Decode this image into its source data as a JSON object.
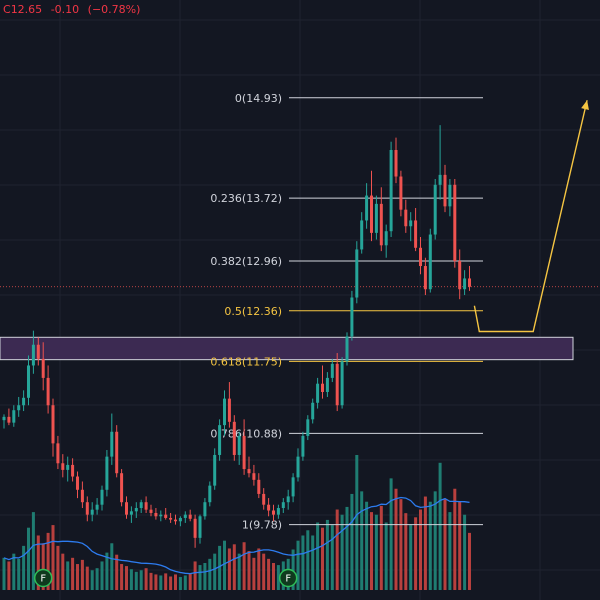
{
  "header": {
    "prefix": "C",
    "close": "12.65",
    "change": "-0.10",
    "change_pct": "(−0.78%)"
  },
  "colors": {
    "background": "#131722",
    "grid": "#1f2330",
    "up": "#26a69a",
    "down": "#ef5350",
    "vol_up": "#1f7d72",
    "vol_down": "#b8403e",
    "fib": "#d1d4dc",
    "fib_highlight": "#f5c542",
    "zone_fill": "#3c2a52",
    "zone_border": "#d1d4dc",
    "projection": "#f5c542",
    "vol_ma": "#2d7cf0",
    "price_line": "#ef5350",
    "dividend_marker": "#2ebd58"
  },
  "chart_data": {
    "type": "candlestick",
    "price_range": [
      8.87,
      16.11
    ],
    "current_price": 12.65,
    "fibonacci": [
      {
        "label": "0(14.93)",
        "value": 14.93,
        "highlight": false
      },
      {
        "label": "0.236(13.72)",
        "value": 13.72,
        "highlight": false
      },
      {
        "label": "0.382(12.96)",
        "value": 12.96,
        "highlight": false
      },
      {
        "label": "0.5(12.36)",
        "value": 12.36,
        "highlight": true
      },
      {
        "label": "0.618(11.75)",
        "value": 11.75,
        "highlight": true
      },
      {
        "label": "0.786(10.88)",
        "value": 10.88,
        "highlight": false
      },
      {
        "label": "1(9.78)",
        "value": 9.78,
        "highlight": false
      }
    ],
    "zone": {
      "low": 11.77,
      "high": 12.04
    },
    "projection": [
      {
        "bar": 96,
        "price": 12.42
      },
      {
        "bar": 97,
        "price": 12.11
      },
      {
        "bar": 108,
        "price": 12.11
      },
      {
        "bar": 119,
        "price": 14.9
      }
    ],
    "markers": [
      {
        "label": "F",
        "bar": 8
      },
      {
        "label": "F",
        "bar": 58
      }
    ],
    "candles": [
      [
        11.04,
        11.11,
        10.94,
        11.08
      ],
      [
        11.08,
        11.18,
        10.98,
        11.01
      ],
      [
        11.01,
        11.22,
        10.96,
        11.16
      ],
      [
        11.16,
        11.32,
        11.08,
        11.22
      ],
      [
        11.22,
        11.4,
        11.15,
        11.31
      ],
      [
        11.31,
        11.82,
        11.22,
        11.7
      ],
      [
        11.7,
        12.12,
        11.6,
        11.95
      ],
      [
        11.95,
        12.04,
        11.7,
        11.78
      ],
      [
        11.78,
        11.98,
        11.4,
        11.55
      ],
      [
        11.55,
        11.7,
        11.12,
        11.22
      ],
      [
        11.22,
        11.3,
        10.6,
        10.76
      ],
      [
        10.76,
        10.85,
        10.45,
        10.52
      ],
      [
        10.52,
        10.63,
        10.35,
        10.44
      ],
      [
        10.44,
        10.6,
        10.3,
        10.5
      ],
      [
        10.5,
        10.58,
        10.3,
        10.36
      ],
      [
        10.36,
        10.42,
        10.1,
        10.2
      ],
      [
        10.2,
        10.3,
        9.98,
        10.05
      ],
      [
        10.05,
        10.12,
        9.82,
        9.9
      ],
      [
        9.9,
        10.05,
        9.82,
        9.96
      ],
      [
        9.96,
        10.1,
        9.9,
        10.02
      ],
      [
        10.02,
        10.25,
        9.95,
        10.2
      ],
      [
        10.2,
        10.68,
        10.12,
        10.6
      ],
      [
        10.6,
        11.12,
        10.5,
        10.9
      ],
      [
        10.9,
        10.98,
        10.35,
        10.4
      ],
      [
        10.4,
        10.45,
        10.0,
        10.05
      ],
      [
        10.05,
        10.12,
        9.85,
        9.9
      ],
      [
        9.9,
        10.0,
        9.8,
        9.94
      ],
      [
        9.94,
        10.05,
        9.86,
        9.98
      ],
      [
        9.98,
        10.08,
        9.92,
        10.05
      ],
      [
        10.05,
        10.12,
        9.92,
        9.96
      ],
      [
        9.96,
        10.02,
        9.88,
        9.92
      ],
      [
        9.92,
        9.98,
        9.84,
        9.88
      ],
      [
        9.88,
        9.95,
        9.82,
        9.9
      ],
      [
        9.9,
        9.98,
        9.84,
        9.86
      ],
      [
        9.86,
        9.92,
        9.8,
        9.84
      ],
      [
        9.84,
        9.9,
        9.78,
        9.82
      ],
      [
        9.82,
        9.88,
        9.76,
        9.86
      ],
      [
        9.86,
        9.94,
        9.8,
        9.9
      ],
      [
        9.9,
        9.96,
        9.82,
        9.85
      ],
      [
        9.85,
        9.9,
        9.5,
        9.62
      ],
      [
        9.62,
        9.9,
        9.55,
        9.88
      ],
      [
        9.88,
        10.1,
        9.84,
        10.05
      ],
      [
        10.05,
        10.3,
        10.0,
        10.25
      ],
      [
        10.25,
        10.7,
        10.2,
        10.62
      ],
      [
        10.62,
        11.05,
        10.55,
        10.98
      ],
      [
        10.98,
        11.4,
        10.85,
        11.3
      ],
      [
        11.3,
        11.5,
        10.95,
        11.02
      ],
      [
        11.02,
        11.1,
        10.55,
        10.62
      ],
      [
        10.62,
        10.9,
        10.5,
        10.85
      ],
      [
        10.85,
        11.05,
        10.38,
        10.45
      ],
      [
        10.45,
        10.6,
        10.35,
        10.4
      ],
      [
        10.4,
        10.5,
        10.25,
        10.32
      ],
      [
        10.32,
        10.4,
        10.1,
        10.15
      ],
      [
        10.15,
        10.22,
        9.96,
        10.02
      ],
      [
        10.02,
        10.1,
        9.88,
        9.95
      ],
      [
        9.95,
        10.02,
        9.82,
        9.9
      ],
      [
        9.9,
        10.02,
        9.85,
        9.98
      ],
      [
        9.98,
        10.1,
        9.92,
        10.05
      ],
      [
        10.05,
        10.2,
        9.96,
        10.12
      ],
      [
        10.12,
        10.4,
        10.05,
        10.35
      ],
      [
        10.35,
        10.7,
        10.3,
        10.6
      ],
      [
        10.6,
        10.9,
        10.55,
        10.85
      ],
      [
        10.85,
        11.1,
        10.8,
        11.05
      ],
      [
        11.05,
        11.3,
        11.0,
        11.25
      ],
      [
        11.25,
        11.55,
        11.18,
        11.48
      ],
      [
        11.48,
        11.7,
        11.3,
        11.38
      ],
      [
        11.38,
        11.62,
        11.32,
        11.55
      ],
      [
        11.55,
        11.78,
        11.5,
        11.72
      ],
      [
        11.72,
        11.85,
        11.15,
        11.22
      ],
      [
        11.22,
        11.8,
        11.18,
        11.75
      ],
      [
        11.75,
        12.1,
        11.7,
        12.05
      ],
      [
        12.05,
        12.6,
        12.0,
        12.52
      ],
      [
        12.52,
        13.2,
        12.45,
        13.1
      ],
      [
        13.1,
        13.55,
        13.05,
        13.45
      ],
      [
        13.45,
        13.9,
        13.35,
        13.75
      ],
      [
        13.75,
        14.05,
        13.2,
        13.3
      ],
      [
        13.3,
        13.75,
        13.22,
        13.65
      ],
      [
        13.65,
        13.85,
        13.08,
        13.15
      ],
      [
        13.15,
        13.4,
        13.0,
        13.32
      ],
      [
        13.32,
        14.4,
        13.25,
        14.3
      ],
      [
        14.3,
        14.45,
        13.9,
        13.98
      ],
      [
        13.98,
        14.05,
        13.5,
        13.58
      ],
      [
        13.58,
        13.7,
        13.3,
        13.38
      ],
      [
        13.38,
        13.55,
        13.2,
        13.45
      ],
      [
        13.45,
        13.6,
        13.08,
        13.12
      ],
      [
        13.12,
        13.25,
        12.8,
        12.9
      ],
      [
        12.9,
        13.0,
        12.55,
        12.62
      ],
      [
        12.62,
        13.35,
        12.58,
        13.28
      ],
      [
        13.28,
        13.95,
        13.22,
        13.88
      ],
      [
        13.88,
        14.6,
        13.7,
        14.0
      ],
      [
        14.0,
        14.12,
        13.55,
        13.62
      ],
      [
        13.62,
        13.95,
        13.5,
        13.88
      ],
      [
        13.88,
        13.95,
        12.88,
        12.96
      ],
      [
        12.96,
        13.1,
        12.5,
        12.62
      ],
      [
        12.62,
        12.85,
        12.55,
        12.75
      ],
      [
        12.75,
        12.9,
        12.6,
        12.65
      ]
    ],
    "volume": [
      [
        0.62,
        1
      ],
      [
        0.55,
        0
      ],
      [
        0.7,
        1
      ],
      [
        0.6,
        1
      ],
      [
        0.85,
        1
      ],
      [
        1.2,
        1
      ],
      [
        1.5,
        1
      ],
      [
        1.05,
        0
      ],
      [
        0.9,
        0
      ],
      [
        1.1,
        0
      ],
      [
        1.25,
        0
      ],
      [
        0.85,
        0
      ],
      [
        0.7,
        0
      ],
      [
        0.55,
        1
      ],
      [
        0.62,
        0
      ],
      [
        0.5,
        0
      ],
      [
        0.58,
        0
      ],
      [
        0.45,
        0
      ],
      [
        0.38,
        1
      ],
      [
        0.42,
        1
      ],
      [
        0.55,
        1
      ],
      [
        0.72,
        1
      ],
      [
        0.9,
        1
      ],
      [
        0.68,
        0
      ],
      [
        0.5,
        0
      ],
      [
        0.46,
        0
      ],
      [
        0.4,
        1
      ],
      [
        0.35,
        1
      ],
      [
        0.38,
        1
      ],
      [
        0.42,
        0
      ],
      [
        0.33,
        0
      ],
      [
        0.3,
        0
      ],
      [
        0.28,
        1
      ],
      [
        0.32,
        0
      ],
      [
        0.26,
        0
      ],
      [
        0.3,
        0
      ],
      [
        0.25,
        1
      ],
      [
        0.28,
        1
      ],
      [
        0.32,
        0
      ],
      [
        0.55,
        0
      ],
      [
        0.48,
        1
      ],
      [
        0.52,
        1
      ],
      [
        0.6,
        1
      ],
      [
        0.7,
        1
      ],
      [
        0.85,
        1
      ],
      [
        0.95,
        1
      ],
      [
        0.8,
        0
      ],
      [
        0.88,
        0
      ],
      [
        0.7,
        1
      ],
      [
        0.92,
        0
      ],
      [
        0.75,
        0
      ],
      [
        0.62,
        0
      ],
      [
        0.8,
        0
      ],
      [
        0.7,
        0
      ],
      [
        0.6,
        0
      ],
      [
        0.52,
        0
      ],
      [
        0.48,
        1
      ],
      [
        0.55,
        1
      ],
      [
        0.6,
        1
      ],
      [
        0.78,
        1
      ],
      [
        0.95,
        1
      ],
      [
        1.05,
        1
      ],
      [
        1.15,
        1
      ],
      [
        1.05,
        1
      ],
      [
        1.3,
        1
      ],
      [
        1.2,
        0
      ],
      [
        1.35,
        1
      ],
      [
        1.25,
        1
      ],
      [
        1.55,
        0
      ],
      [
        1.45,
        1
      ],
      [
        1.6,
        1
      ],
      [
        1.85,
        1
      ],
      [
        2.6,
        1
      ],
      [
        1.9,
        1
      ],
      [
        1.7,
        1
      ],
      [
        1.5,
        0
      ],
      [
        1.45,
        1
      ],
      [
        1.62,
        0
      ],
      [
        1.3,
        1
      ],
      [
        2.15,
        1
      ],
      [
        1.95,
        0
      ],
      [
        1.75,
        0
      ],
      [
        1.48,
        0
      ],
      [
        1.25,
        1
      ],
      [
        1.4,
        0
      ],
      [
        1.55,
        0
      ],
      [
        1.8,
        0
      ],
      [
        1.7,
        1
      ],
      [
        1.9,
        1
      ],
      [
        2.45,
        1
      ],
      [
        1.75,
        0
      ],
      [
        1.5,
        1
      ],
      [
        1.95,
        0
      ],
      [
        1.7,
        0
      ],
      [
        1.45,
        1
      ],
      [
        1.1,
        0
      ]
    ],
    "volume_max": 2.6
  }
}
